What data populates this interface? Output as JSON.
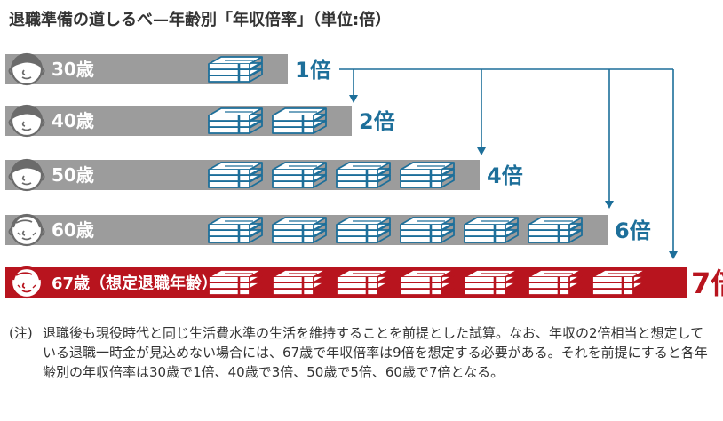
{
  "title": "退職準備の道しるべ—年齢別「年収倍率」（単位:倍）",
  "colors": {
    "bar_gray": "#9c9c9c",
    "bar_red": "#b8141e",
    "accent_blue": "#1d6f9a",
    "accent_red": "#b8141e",
    "stack_fill_blue": "#ffffff",
    "stack_fill_red": "#ffffff",
    "face_fill": "#ffffff"
  },
  "chart_data": {
    "type": "bar",
    "categories": [
      "30歳",
      "40歳",
      "50歳",
      "60歳",
      "67歳（想定退職年齢）"
    ],
    "values": [
      1,
      2,
      4,
      6,
      7
    ],
    "value_labels": [
      "1倍",
      "2倍",
      "4倍",
      "6倍",
      "7倍"
    ],
    "highlight_index": 4,
    "icon": "money-stack-icon",
    "icon_per_unit": 1
  },
  "note": {
    "marker": "(注)",
    "text": "退職後も現役時代と同じ生活費水準の生活を維持することを前提とした試算。なお、年収の2倍相当と想定している退職一時金が見込めない場合には、67歳で年収倍率は9倍を想定する必要がある。それを前提にすると各年齢別の年収倍率は30歳で1倍、40歳で3倍、50歳で5倍、60歳で7倍となる。"
  }
}
